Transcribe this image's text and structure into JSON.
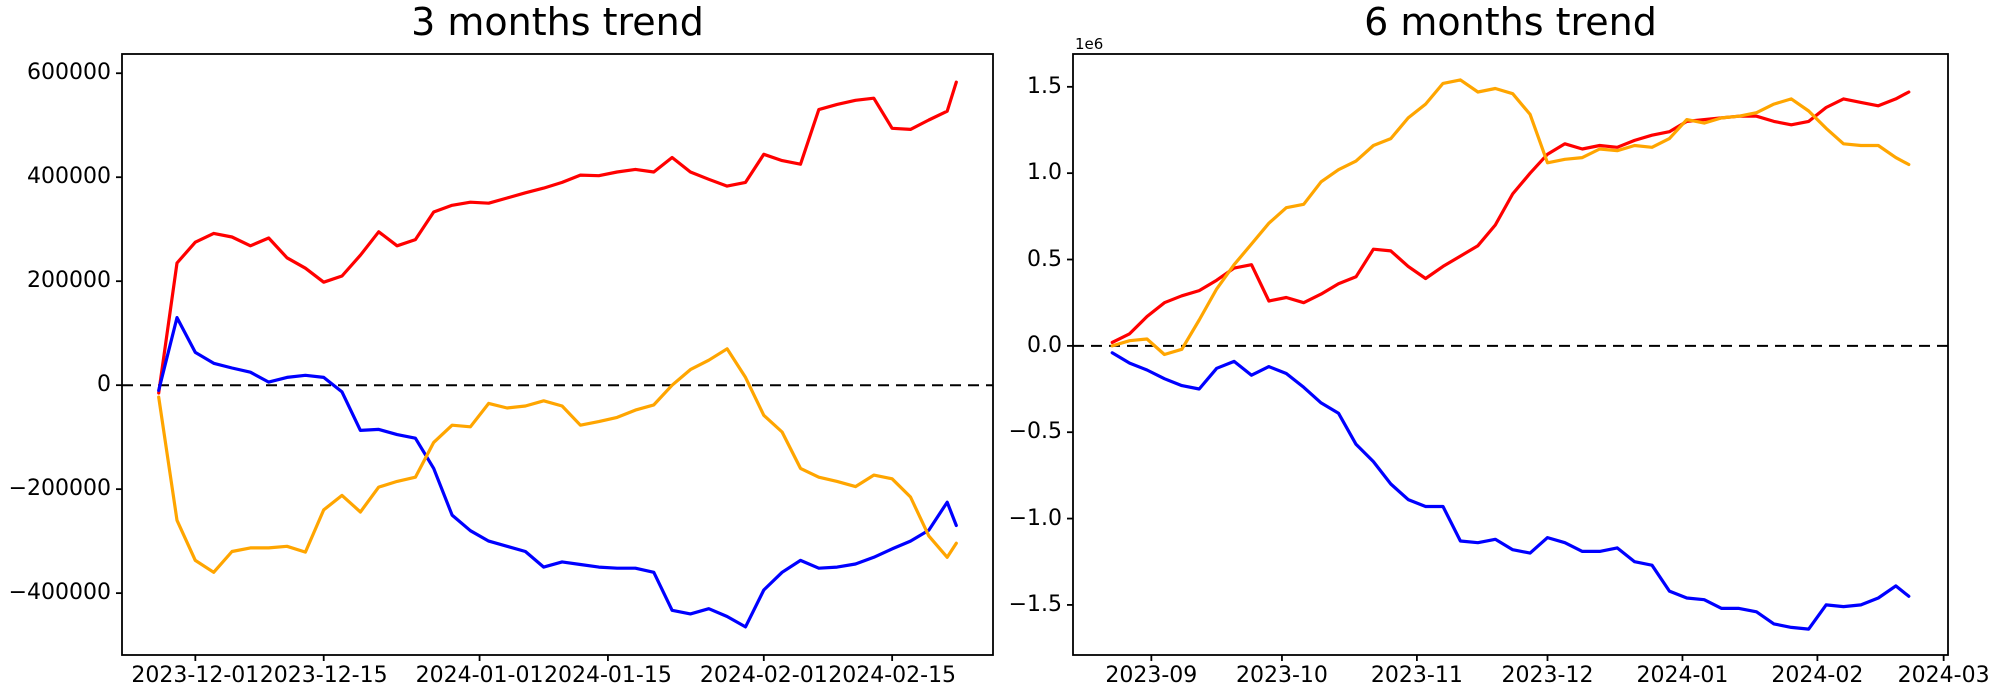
{
  "figure": {
    "background_color": "#ffffff",
    "text_color": "#000000"
  },
  "chart_data": [
    {
      "type": "line",
      "title": "3 months trend",
      "legend": "none",
      "grid": false,
      "xlim": [
        "2023-11-23",
        "2024-02-26"
      ],
      "ylim": [
        -519000,
        637000
      ],
      "zero_line": {
        "style": "dashed",
        "color": "#000000"
      },
      "x_axis": {
        "ticks": [
          {
            "date": "2023-12-01",
            "label": "2023-12-01"
          },
          {
            "date": "2023-12-15",
            "label": "2023-12-15"
          },
          {
            "date": "2024-01-01",
            "label": "2024-01-01"
          },
          {
            "date": "2024-01-15",
            "label": "2024-01-15"
          },
          {
            "date": "2024-02-01",
            "label": "2024-02-01"
          },
          {
            "date": "2024-02-15",
            "label": "2024-02-15"
          }
        ]
      },
      "y_axis": {
        "ticks": [
          {
            "value": -400000,
            "label": "−400000"
          },
          {
            "value": -200000,
            "label": "−200000"
          },
          {
            "value": 0,
            "label": "0"
          },
          {
            "value": 200000,
            "label": "200000"
          },
          {
            "value": 400000,
            "label": "400000"
          },
          {
            "value": 600000,
            "label": "600000"
          }
        ]
      },
      "dates": [
        "2023-11-27",
        "2023-11-29",
        "2023-12-01",
        "2023-12-03",
        "2023-12-05",
        "2023-12-07",
        "2023-12-09",
        "2023-12-11",
        "2023-12-13",
        "2023-12-15",
        "2023-12-17",
        "2023-12-19",
        "2023-12-21",
        "2023-12-23",
        "2023-12-25",
        "2023-12-27",
        "2023-12-29",
        "2023-12-31",
        "2024-01-02",
        "2024-01-04",
        "2024-01-06",
        "2024-01-08",
        "2024-01-10",
        "2024-01-12",
        "2024-01-14",
        "2024-01-16",
        "2024-01-18",
        "2024-01-20",
        "2024-01-22",
        "2024-01-24",
        "2024-01-26",
        "2024-01-28",
        "2024-01-30",
        "2024-02-01",
        "2024-02-03",
        "2024-02-05",
        "2024-02-07",
        "2024-02-09",
        "2024-02-11",
        "2024-02-13",
        "2024-02-15",
        "2024-02-17",
        "2024-02-19",
        "2024-02-21",
        "2024-02-22"
      ],
      "series": [
        {
          "name": "red",
          "color": "#ff0000",
          "values": [
            -15000,
            235000,
            275000,
            292000,
            285000,
            268000,
            283000,
            245000,
            225000,
            198000,
            210000,
            250000,
            295000,
            268000,
            280000,
            333000,
            346000,
            352000,
            350000,
            360000,
            370000,
            379000,
            390000,
            404000,
            403000,
            410000,
            415000,
            410000,
            438000,
            410000,
            396000,
            383000,
            390000,
            444000,
            432000,
            425000,
            530000,
            540000,
            548000,
            552000,
            494000,
            492000,
            510000,
            527000,
            583000
          ]
        },
        {
          "name": "blue",
          "color": "#0000ff",
          "values": [
            -10000,
            130000,
            63000,
            42000,
            33000,
            25000,
            6000,
            15000,
            19000,
            15000,
            -13000,
            -87000,
            -85000,
            -95000,
            -102000,
            -160000,
            -250000,
            -280000,
            -300000,
            -310000,
            -320000,
            -350000,
            -340000,
            -345000,
            -350000,
            -352000,
            -352000,
            -360000,
            -433000,
            -440000,
            -430000,
            -445000,
            -465000,
            -394000,
            -360000,
            -337000,
            -352000,
            -350000,
            -344000,
            -331000,
            -315000,
            -300000,
            -279000,
            -225000,
            -270000
          ]
        },
        {
          "name": "orange",
          "color": "#ffa500",
          "values": [
            -23000,
            -260000,
            -337000,
            -360000,
            -320000,
            -313000,
            -313000,
            -310000,
            -321000,
            -240000,
            -212000,
            -244000,
            -196000,
            -185000,
            -177000,
            -110000,
            -77000,
            -80000,
            -35000,
            -44000,
            -40000,
            -30000,
            -40000,
            -77000,
            -70000,
            -62000,
            -48000,
            -38000,
            0,
            30000,
            48000,
            70000,
            15000,
            -58000,
            -90000,
            -160000,
            -177000,
            -185000,
            -195000,
            -173000,
            -180000,
            -215000,
            -290000,
            -331000,
            -304000
          ]
        }
      ]
    },
    {
      "type": "line",
      "title": "6 months trend",
      "legend": "none",
      "grid": false,
      "xlim": [
        "2023-08-14",
        "2024-03-02"
      ],
      "ylim": [
        -1790000,
        1690000
      ],
      "zero_line": {
        "style": "dashed",
        "color": "#000000"
      },
      "x_axis": {
        "ticks": [
          {
            "date": "2023-09-01",
            "label": "2023-09"
          },
          {
            "date": "2023-10-01",
            "label": "2023-10"
          },
          {
            "date": "2023-11-01",
            "label": "2023-11"
          },
          {
            "date": "2023-12-01",
            "label": "2023-12"
          },
          {
            "date": "2024-01-01",
            "label": "2024-01"
          },
          {
            "date": "2024-02-01",
            "label": "2024-02"
          },
          {
            "date": "2024-03-01",
            "label": "2024-03"
          }
        ]
      },
      "y_axis": {
        "offset_label": "1e6",
        "ticks": [
          {
            "value": -1500000,
            "label": "−1.5"
          },
          {
            "value": -1000000,
            "label": "−1.0"
          },
          {
            "value": -500000,
            "label": "−0.5"
          },
          {
            "value": 0,
            "label": "0.0"
          },
          {
            "value": 500000,
            "label": "0.5"
          },
          {
            "value": 1000000,
            "label": "1.0"
          },
          {
            "value": 1500000,
            "label": "1.5"
          }
        ]
      },
      "dates": [
        "2023-08-23",
        "2023-08-27",
        "2023-08-31",
        "2023-09-04",
        "2023-09-08",
        "2023-09-12",
        "2023-09-16",
        "2023-09-20",
        "2023-09-24",
        "2023-09-28",
        "2023-10-02",
        "2023-10-06",
        "2023-10-10",
        "2023-10-14",
        "2023-10-18",
        "2023-10-22",
        "2023-10-26",
        "2023-10-30",
        "2023-11-03",
        "2023-11-07",
        "2023-11-11",
        "2023-11-15",
        "2023-11-19",
        "2023-11-23",
        "2023-11-27",
        "2023-12-01",
        "2023-12-05",
        "2023-12-09",
        "2023-12-13",
        "2023-12-17",
        "2023-12-21",
        "2023-12-25",
        "2023-12-29",
        "2024-01-02",
        "2024-01-06",
        "2024-01-10",
        "2024-01-14",
        "2024-01-18",
        "2024-01-22",
        "2024-01-26",
        "2024-01-30",
        "2024-02-03",
        "2024-02-07",
        "2024-02-11",
        "2024-02-15",
        "2024-02-19",
        "2024-02-22"
      ],
      "series": [
        {
          "name": "red",
          "color": "#ff0000",
          "values": [
            20000,
            70000,
            170000,
            250000,
            290000,
            320000,
            380000,
            450000,
            470000,
            260000,
            280000,
            250000,
            300000,
            360000,
            400000,
            560000,
            550000,
            460000,
            390000,
            460000,
            520000,
            580000,
            700000,
            880000,
            1000000,
            1110000,
            1170000,
            1140000,
            1160000,
            1150000,
            1190000,
            1220000,
            1240000,
            1300000,
            1310000,
            1320000,
            1330000,
            1330000,
            1300000,
            1280000,
            1300000,
            1380000,
            1430000,
            1410000,
            1390000,
            1430000,
            1470000
          ]
        },
        {
          "name": "blue",
          "color": "#0000ff",
          "values": [
            -40000,
            -100000,
            -140000,
            -190000,
            -230000,
            -250000,
            -130000,
            -90000,
            -170000,
            -120000,
            -160000,
            -240000,
            -330000,
            -390000,
            -570000,
            -670000,
            -800000,
            -890000,
            -930000,
            -930000,
            -1130000,
            -1140000,
            -1120000,
            -1180000,
            -1200000,
            -1110000,
            -1140000,
            -1190000,
            -1190000,
            -1170000,
            -1250000,
            -1270000,
            -1420000,
            -1460000,
            -1470000,
            -1520000,
            -1520000,
            -1540000,
            -1610000,
            -1630000,
            -1640000,
            -1500000,
            -1510000,
            -1500000,
            -1460000,
            -1390000,
            -1450000
          ]
        },
        {
          "name": "orange",
          "color": "#ffa500",
          "values": [
            0,
            30000,
            40000,
            -50000,
            -20000,
            150000,
            330000,
            470000,
            590000,
            710000,
            800000,
            820000,
            950000,
            1020000,
            1070000,
            1160000,
            1200000,
            1320000,
            1400000,
            1520000,
            1540000,
            1470000,
            1490000,
            1460000,
            1340000,
            1060000,
            1080000,
            1090000,
            1140000,
            1130000,
            1160000,
            1150000,
            1200000,
            1310000,
            1290000,
            1320000,
            1330000,
            1350000,
            1400000,
            1430000,
            1360000,
            1260000,
            1170000,
            1160000,
            1160000,
            1090000,
            1050000
          ]
        }
      ]
    }
  ]
}
